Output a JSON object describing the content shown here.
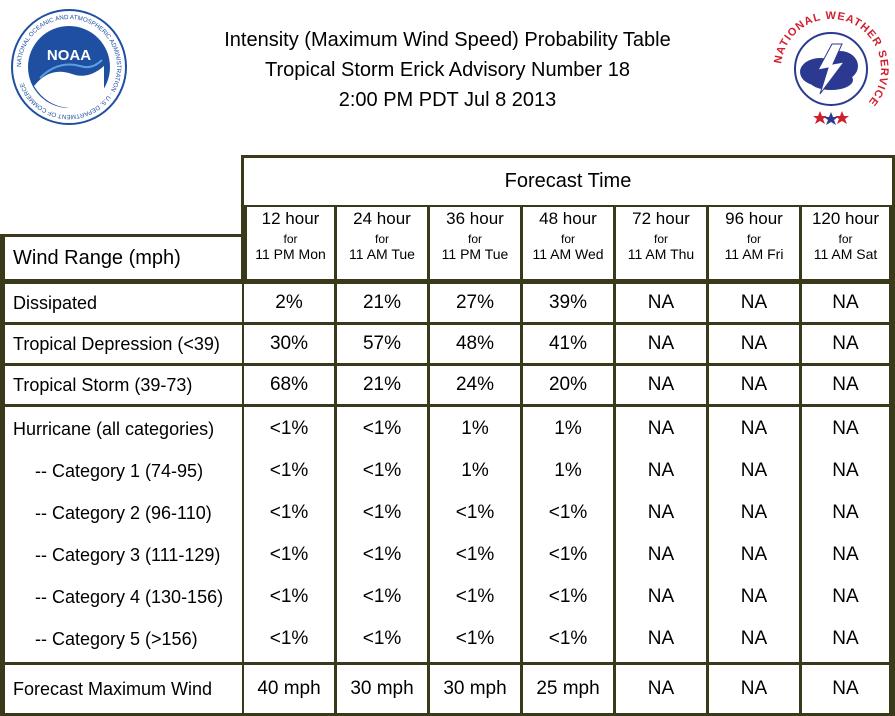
{
  "header": {
    "title_line1": "Intensity (Maximum Wind Speed) Probability Table",
    "title_line2": "Tropical Storm Erick Advisory Number 18",
    "title_line3": "2:00 PM PDT Jul 8 2013"
  },
  "logos": {
    "noaa_text": "NOAA",
    "noaa_ring": "NATIONAL OCEANIC AND ATMOSPHERIC ADMINISTRATION · U.S. DEPARTMENT OF COMMERCE",
    "nws_ring": "NATIONAL WEATHER SERVICE"
  },
  "colors": {
    "border": "#3a3a1a",
    "noaa_blue": "#1f4fa0",
    "nws_red": "#d01f2e",
    "nws_blue": "#2b3990"
  },
  "chart_data": {
    "type": "table",
    "forecast_time_label": "Forecast Time",
    "row_header_label": "Wind Range (mph)",
    "columns": [
      {
        "hours": "12 hour",
        "for": "for",
        "time": "11 PM Mon"
      },
      {
        "hours": "24 hour",
        "for": "for",
        "time": "11 AM Tue"
      },
      {
        "hours": "36 hour",
        "for": "for",
        "time": "11 PM Tue"
      },
      {
        "hours": "48 hour",
        "for": "for",
        "time": "11 AM Wed"
      },
      {
        "hours": "72 hour",
        "for": "for",
        "time": "11 AM Thu"
      },
      {
        "hours": "96 hour",
        "for": "for",
        "time": "11 AM Fri"
      },
      {
        "hours": "120 hour",
        "for": "for",
        "time": "11 AM Sat"
      }
    ],
    "rows": [
      {
        "label": "Dissipated",
        "values": [
          "2%",
          "21%",
          "27%",
          "39%",
          "NA",
          "NA",
          "NA"
        ]
      },
      {
        "label": "Tropical Depression (<39)",
        "values": [
          "30%",
          "57%",
          "48%",
          "41%",
          "NA",
          "NA",
          "NA"
        ]
      },
      {
        "label": "Tropical Storm (39-73)",
        "values": [
          "68%",
          "21%",
          "24%",
          "20%",
          "NA",
          "NA",
          "NA"
        ]
      },
      {
        "label": "Hurricane (all categories)",
        "values": [
          "<1%",
          "<1%",
          "1%",
          "1%",
          "NA",
          "NA",
          "NA"
        ]
      },
      {
        "label": "-- Category 1 (74-95)",
        "values": [
          "<1%",
          "<1%",
          "1%",
          "1%",
          "NA",
          "NA",
          "NA"
        ]
      },
      {
        "label": "-- Category 2 (96-110)",
        "values": [
          "<1%",
          "<1%",
          "<1%",
          "<1%",
          "NA",
          "NA",
          "NA"
        ]
      },
      {
        "label": "-- Category 3 (111-129)",
        "values": [
          "<1%",
          "<1%",
          "<1%",
          "<1%",
          "NA",
          "NA",
          "NA"
        ]
      },
      {
        "label": "-- Category 4 (130-156)",
        "values": [
          "<1%",
          "<1%",
          "<1%",
          "<1%",
          "NA",
          "NA",
          "NA"
        ]
      },
      {
        "label": "-- Category 5 (>156)",
        "values": [
          "<1%",
          "<1%",
          "<1%",
          "<1%",
          "NA",
          "NA",
          "NA"
        ]
      },
      {
        "label": "Forecast Maximum Wind",
        "values": [
          "40 mph",
          "30 mph",
          "30 mph",
          "25 mph",
          "NA",
          "NA",
          "NA"
        ]
      }
    ]
  }
}
